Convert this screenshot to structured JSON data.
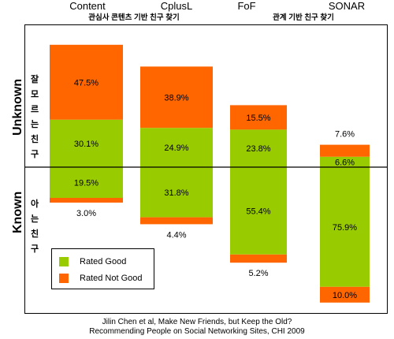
{
  "headers": {
    "content": "Content",
    "cplusl": "CplusL",
    "fof": "FoF",
    "sonar": "SONAR",
    "content_sub": "관심사 콘텐츠 기반 친구 찾기",
    "relation_sub": "관계 기반 친구 찾기"
  },
  "side_labels": {
    "unknown": "Unknown",
    "known": "Known",
    "unknown_ko": "잘 모르는 친구",
    "known_ko": "아는 친구"
  },
  "legend": {
    "good": "Rated Good",
    "not_good": "Rated Not Good"
  },
  "caption": {
    "line1": "Jilin Chen et al, Make New Friends, but Keep the Old?",
    "line2": "Recommending People on Social Networking Sites, CHI 2009"
  },
  "colors": {
    "good": "#99cc00",
    "not_good": "#ff6600",
    "divider": "#000000"
  },
  "chart_data": {
    "type": "bar",
    "stacked": true,
    "diverging": true,
    "categories": [
      "Content",
      "CplusL",
      "FoF",
      "SONAR"
    ],
    "series": [
      {
        "name": "Rated Good",
        "group": "Unknown",
        "values": [
          30.1,
          24.9,
          23.8,
          6.6
        ]
      },
      {
        "name": "Rated Not Good",
        "group": "Unknown",
        "values": [
          47.5,
          38.9,
          15.5,
          7.6
        ]
      },
      {
        "name": "Rated Good",
        "group": "Known",
        "values": [
          19.5,
          31.8,
          55.4,
          75.9
        ]
      },
      {
        "name": "Rated Not Good",
        "group": "Known",
        "values": [
          3.0,
          4.4,
          5.2,
          10.0
        ]
      }
    ],
    "labels": {
      "unknown_good": [
        "30.1%",
        "24.9%",
        "23.8%",
        "6.6%"
      ],
      "unknown_not_good": [
        "47.5%",
        "38.9%",
        "15.5%",
        "7.6%"
      ],
      "known_good": [
        "19.5%",
        "31.8%",
        "55.4%",
        "75.9%"
      ],
      "known_not_good": [
        "3.0%",
        "4.4%",
        "5.2%",
        "10.0%"
      ]
    },
    "ylim": [
      -86,
      78
    ],
    "grid": false,
    "legend_position": "bottom-left"
  }
}
